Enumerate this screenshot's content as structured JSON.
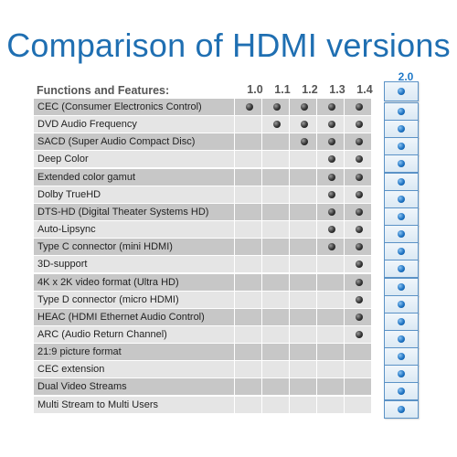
{
  "title": "Comparison of HDMI versions",
  "header": {
    "features_label": "Functions and Features:",
    "versions": [
      "1.0",
      "1.1",
      "1.2",
      "1.3",
      "1.4"
    ],
    "highlight_version": "2.0"
  },
  "colors": {
    "title": "#1f6fb2",
    "highlight": "#1e78c8",
    "row_dark": "#c7c7c7",
    "row_light": "#e5e5e5"
  },
  "rows": [
    {
      "label": "CEC (Consumer Electronics Control)",
      "support": [
        true,
        true,
        true,
        true,
        true,
        true
      ]
    },
    {
      "label": "DVD Audio Frequency",
      "support": [
        false,
        true,
        true,
        true,
        true,
        true
      ]
    },
    {
      "label": "SACD (Super Audio Compact Disc)",
      "support": [
        false,
        false,
        true,
        true,
        true,
        true
      ]
    },
    {
      "label": "Deep Color",
      "support": [
        false,
        false,
        false,
        true,
        true,
        true
      ]
    },
    {
      "label": "Extended color gamut",
      "support": [
        false,
        false,
        false,
        true,
        true,
        true
      ]
    },
    {
      "label": "Dolby TrueHD",
      "support": [
        false,
        false,
        false,
        true,
        true,
        true
      ]
    },
    {
      "label": "DTS-HD (Digital Theater Systems HD)",
      "support": [
        false,
        false,
        false,
        true,
        true,
        true
      ]
    },
    {
      "label": "Auto-Lipsync",
      "support": [
        false,
        false,
        false,
        true,
        true,
        true
      ]
    },
    {
      "label": "Type C connector (mini HDMI)",
      "support": [
        false,
        false,
        false,
        true,
        true,
        true
      ]
    },
    {
      "label": "3D-support",
      "support": [
        false,
        false,
        false,
        false,
        true,
        true
      ]
    },
    {
      "label": "4K x 2K video format (Ultra HD)",
      "support": [
        false,
        false,
        false,
        false,
        true,
        true
      ]
    },
    {
      "label": "Type D connector (micro HDMI)",
      "support": [
        false,
        false,
        false,
        false,
        true,
        true
      ]
    },
    {
      "label": "HEAC (HDMI Ethernet Audio Control)",
      "support": [
        false,
        false,
        false,
        false,
        true,
        true
      ]
    },
    {
      "label": "ARC (Audio Return Channel)",
      "support": [
        false,
        false,
        false,
        false,
        true,
        true
      ]
    },
    {
      "label": "21:9 picture format",
      "support": [
        false,
        false,
        false,
        false,
        false,
        true
      ]
    },
    {
      "label": "CEC extension",
      "support": [
        false,
        false,
        false,
        false,
        false,
        true
      ]
    },
    {
      "label": "Dual Video Streams",
      "support": [
        false,
        false,
        false,
        false,
        false,
        true
      ]
    },
    {
      "label": "Multi Stream to Multi Users",
      "support": [
        false,
        false,
        false,
        false,
        false,
        true
      ]
    }
  ]
}
